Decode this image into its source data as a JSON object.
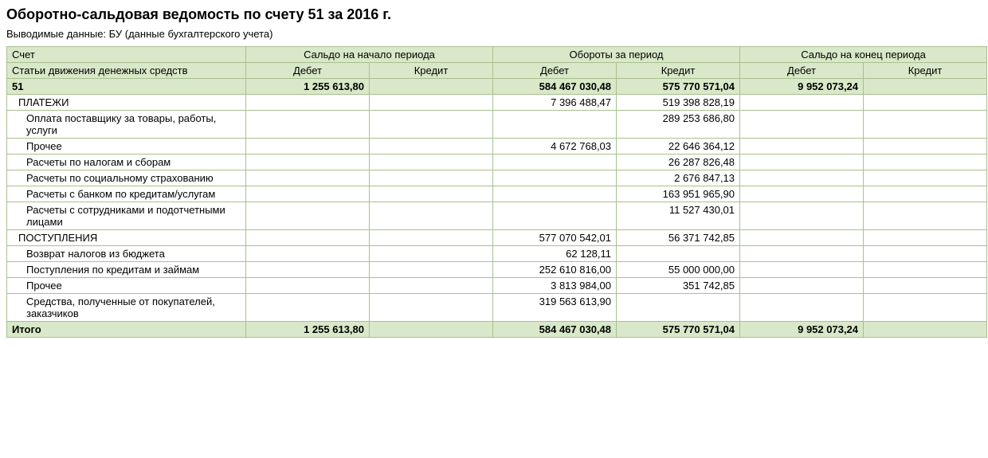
{
  "title": "Оборотно-сальдовая ведомость по счету 51 за 2016 г.",
  "subtitle": "Выводимые данные:  БУ (данные бухгалтерского учета)",
  "headers": {
    "account": "Счет",
    "opening": "Сальдо на начало периода",
    "turnover": "Обороты за период",
    "closing": "Сальдо на конец периода",
    "subheader_account": "Статьи движения денежных средств",
    "debit": "Дебет",
    "credit": "Кредит"
  },
  "rows": [
    {
      "label": "51",
      "highlight": true,
      "indent": 0,
      "open_debit": "1 255 613,80",
      "open_credit": "",
      "turn_debit": "584 467 030,48",
      "turn_credit": "575 770 571,04",
      "close_debit": "9 952 073,24",
      "close_credit": ""
    },
    {
      "label": "ПЛАТЕЖИ",
      "indent": 1,
      "open_debit": "",
      "open_credit": "",
      "turn_debit": "7 396 488,47",
      "turn_credit": "519 398 828,19",
      "close_debit": "",
      "close_credit": ""
    },
    {
      "label": "Оплата поставщику за товары, работы, услуги",
      "indent": 2,
      "open_debit": "",
      "open_credit": "",
      "turn_debit": "",
      "turn_credit": "289 253 686,80",
      "close_debit": "",
      "close_credit": ""
    },
    {
      "label": "Прочее",
      "indent": 2,
      "open_debit": "",
      "open_credit": "",
      "turn_debit": "4 672 768,03",
      "turn_credit": "22 646 364,12",
      "close_debit": "",
      "close_credit": ""
    },
    {
      "label": "Расчеты по налогам и сборам",
      "indent": 2,
      "open_debit": "",
      "open_credit": "",
      "turn_debit": "",
      "turn_credit": "26 287 826,48",
      "close_debit": "",
      "close_credit": ""
    },
    {
      "label": "Расчеты по социальному страхованию",
      "indent": 2,
      "open_debit": "",
      "open_credit": "",
      "turn_debit": "",
      "turn_credit": "2 676 847,13",
      "close_debit": "",
      "close_credit": ""
    },
    {
      "label": "Расчеты с банком по кредитам/услугам",
      "indent": 2,
      "open_debit": "",
      "open_credit": "",
      "turn_debit": "",
      "turn_credit": "163 951 965,90",
      "close_debit": "",
      "close_credit": ""
    },
    {
      "label": "Расчеты с сотрудниками и подотчетными лицами",
      "indent": 2,
      "open_debit": "",
      "open_credit": "",
      "turn_debit": "",
      "turn_credit": "11 527 430,01",
      "close_debit": "",
      "close_credit": ""
    },
    {
      "label": "ПОСТУПЛЕНИЯ",
      "indent": 1,
      "open_debit": "",
      "open_credit": "",
      "turn_debit": "577 070 542,01",
      "turn_credit": "56 371 742,85",
      "close_debit": "",
      "close_credit": ""
    },
    {
      "label": "Возврат налогов из бюджета",
      "indent": 2,
      "open_debit": "",
      "open_credit": "",
      "turn_debit": "62 128,11",
      "turn_credit": "",
      "close_debit": "",
      "close_credit": ""
    },
    {
      "label": "Поступления по кредитам и займам",
      "indent": 2,
      "open_debit": "",
      "open_credit": "",
      "turn_debit": "252 610 816,00",
      "turn_credit": "55 000 000,00",
      "close_debit": "",
      "close_credit": ""
    },
    {
      "label": "Прочее",
      "indent": 2,
      "open_debit": "",
      "open_credit": "",
      "turn_debit": "3 813 984,00",
      "turn_credit": "351 742,85",
      "close_debit": "",
      "close_credit": ""
    },
    {
      "label": "Средства, полученные от покупателей, заказчиков",
      "indent": 2,
      "open_debit": "",
      "open_credit": "",
      "turn_debit": "319 563 613,90",
      "turn_credit": "",
      "close_debit": "",
      "close_credit": ""
    }
  ],
  "total": {
    "label": "Итого",
    "open_debit": "1 255 613,80",
    "open_credit": "",
    "turn_debit": "584 467 030,48",
    "turn_credit": "575 770 571,04",
    "close_debit": "9 952 073,24",
    "close_credit": ""
  },
  "colors": {
    "header_bg": "#d8e8c8",
    "border": "#a8c090",
    "background": "#ffffff"
  }
}
